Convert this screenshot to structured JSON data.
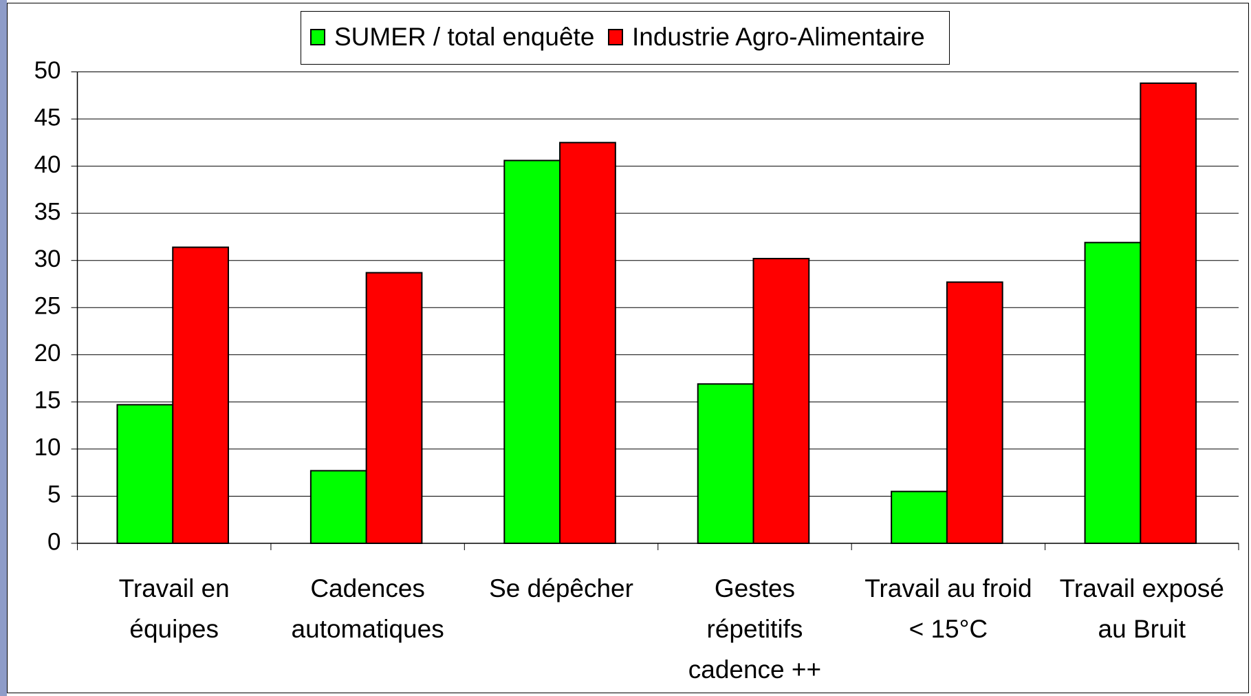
{
  "chart_data": {
    "type": "bar",
    "categories": [
      [
        "Travail en",
        "équipes"
      ],
      [
        "Cadences",
        "automatiques"
      ],
      [
        "Se dépêcher"
      ],
      [
        "Gestes",
        "répetitifs",
        "cadence ++"
      ],
      [
        "Travail au froid",
        "< 15°C"
      ],
      [
        "Travail exposé",
        "au Bruit"
      ]
    ],
    "series": [
      {
        "name": "SUMER / total enquête",
        "color": "#00ff00",
        "values": [
          14.7,
          7.7,
          40.6,
          16.9,
          5.5,
          31.9
        ]
      },
      {
        "name": "Industrie Agro-Alimentaire",
        "color": "#ff0000",
        "values": [
          31.4,
          28.7,
          42.5,
          30.2,
          27.7,
          48.8
        ]
      }
    ],
    "ylim": [
      0,
      50
    ],
    "yticks": [
      0,
      5,
      10,
      15,
      20,
      25,
      30,
      35,
      40,
      45,
      50
    ],
    "grid": true,
    "legend": "top"
  }
}
